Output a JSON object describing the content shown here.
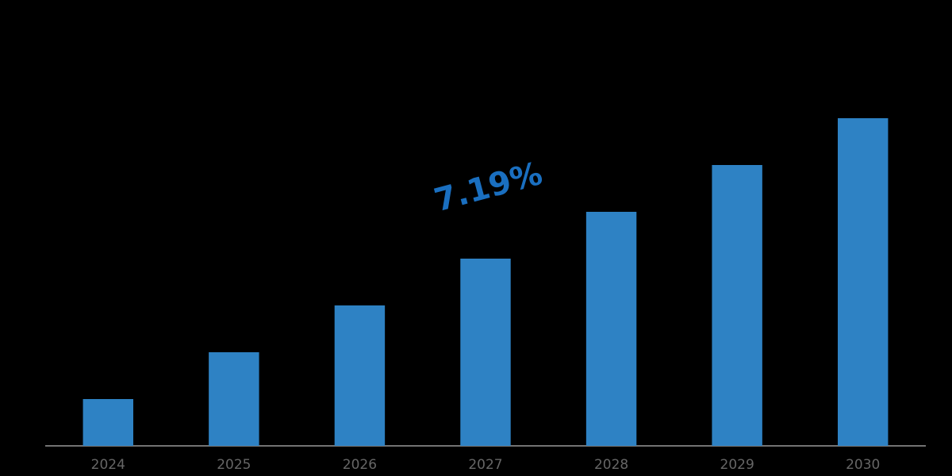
{
  "chart_data": {
    "type": "bar",
    "categories": [
      "2024",
      "2025",
      "2026",
      "2027",
      "2028",
      "2029",
      "2030"
    ],
    "values": [
      1,
      2,
      3,
      4,
      5,
      6,
      7
    ],
    "color": "#2e82c4",
    "ylim": [
      0,
      8
    ],
    "annotation": "7.19%",
    "annotation_color": "#1a6fc0"
  }
}
